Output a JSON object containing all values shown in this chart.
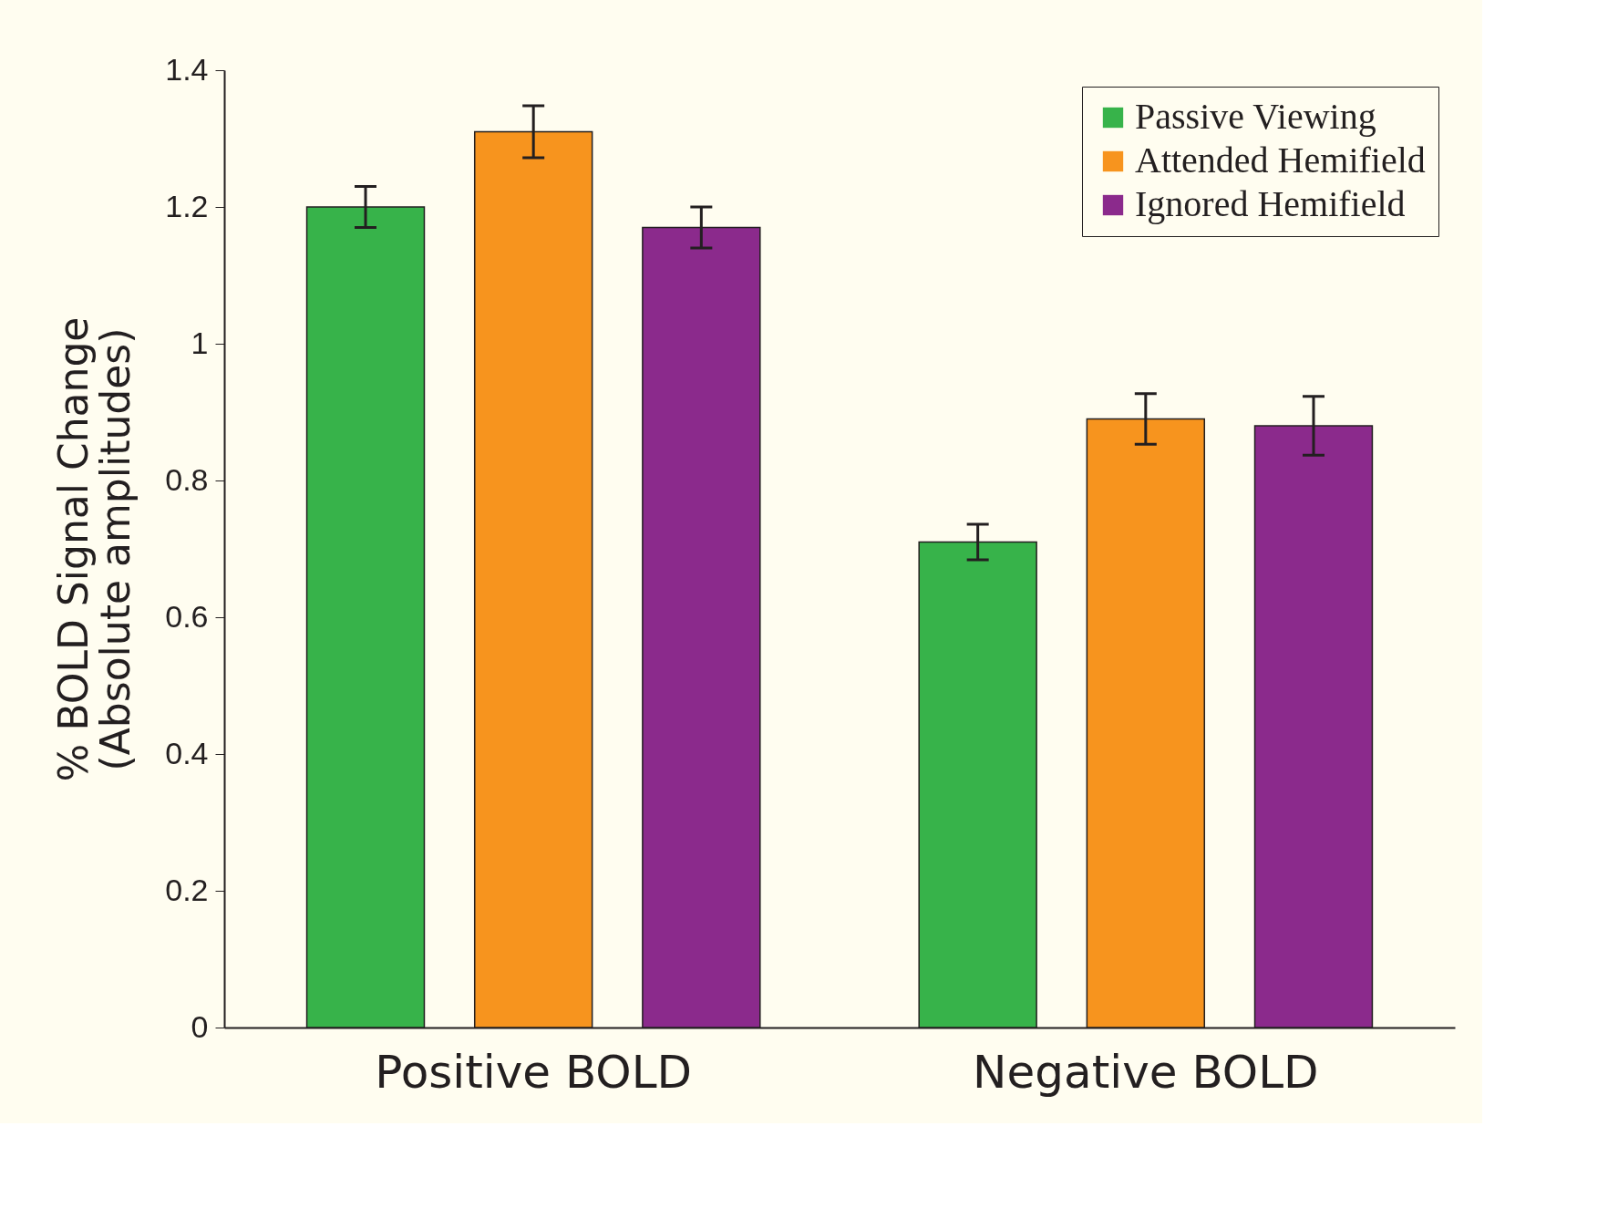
{
  "chart_data": {
    "type": "bar",
    "ylabel": "% BOLD Signal Change\n(Absolute amplitudes)",
    "categories": [
      "Positive BOLD",
      "Negative BOLD"
    ],
    "series": [
      {
        "name": "Passive Viewing",
        "color": "#37b34a",
        "values": [
          1.2,
          0.71
        ],
        "errors": [
          0.03,
          0.026
        ]
      },
      {
        "name": "Attended Hemifield",
        "color": "#f7941e",
        "values": [
          1.31,
          0.89
        ],
        "errors": [
          0.038,
          0.037
        ]
      },
      {
        "name": "Ignored Hemifield",
        "color": "#8b2a8c",
        "values": [
          1.17,
          0.88
        ],
        "errors": [
          0.03,
          0.043
        ]
      }
    ],
    "ylim": [
      0,
      1.4
    ],
    "yticks": [
      0,
      0.2,
      0.4,
      0.6,
      0.8,
      1,
      1.2,
      1.4
    ],
    "legend": "top right",
    "grid": false
  }
}
